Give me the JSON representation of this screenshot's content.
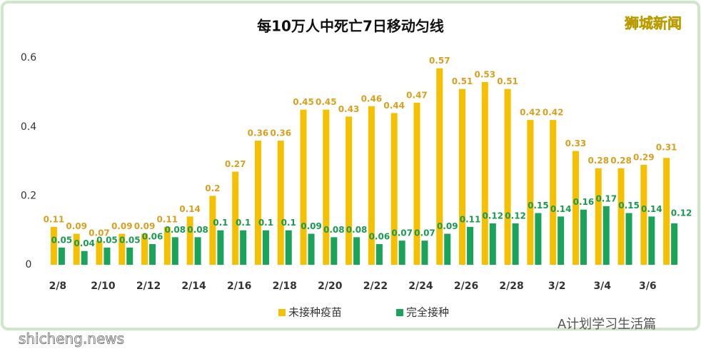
{
  "chart_data": {
    "type": "bar",
    "title": "每10万人中死亡7日移动匀线",
    "logo": "狮城新闻",
    "watermark": "A计划学习生活篇",
    "site": "shicheng.news",
    "categories": [
      "2/8",
      null,
      "2/10",
      null,
      "2/12",
      null,
      "2/14",
      null,
      "2/16",
      null,
      "2/18",
      null,
      "2/20",
      null,
      "2/22",
      null,
      "2/24",
      null,
      "2/26",
      null,
      "2/28",
      null,
      "3/2",
      null,
      "3/4",
      null,
      "3/6",
      null
    ],
    "series": [
      {
        "name": "未接种疫苗",
        "color": "#f5c000",
        "label_color": "#d9a020",
        "values": [
          0.11,
          0.09,
          0.07,
          0.09,
          0.09,
          0.11,
          0.14,
          0.2,
          0.27,
          0.36,
          0.36,
          0.45,
          0.45,
          0.43,
          0.46,
          0.44,
          0.47,
          0.57,
          0.51,
          0.53,
          0.51,
          0.42,
          0.42,
          0.33,
          0.28,
          0.28,
          0.29,
          0.31
        ]
      },
      {
        "name": "完全接种",
        "color": "#1aa35a",
        "label_color": "#1a9a50",
        "values": [
          0.05,
          0.04,
          0.05,
          0.05,
          0.06,
          0.08,
          0.08,
          0.1,
          0.1,
          0.1,
          0.1,
          0.09,
          0.08,
          0.08,
          0.06,
          0.07,
          0.07,
          0.09,
          0.11,
          0.12,
          0.12,
          0.15,
          0.14,
          0.16,
          0.17,
          0.15,
          0.14,
          0.12
        ]
      }
    ],
    "ylim": [
      0,
      0.65
    ],
    "yticks": [
      0,
      0.2,
      0.4,
      0.6
    ],
    "grid": false,
    "legend": "bottom"
  }
}
